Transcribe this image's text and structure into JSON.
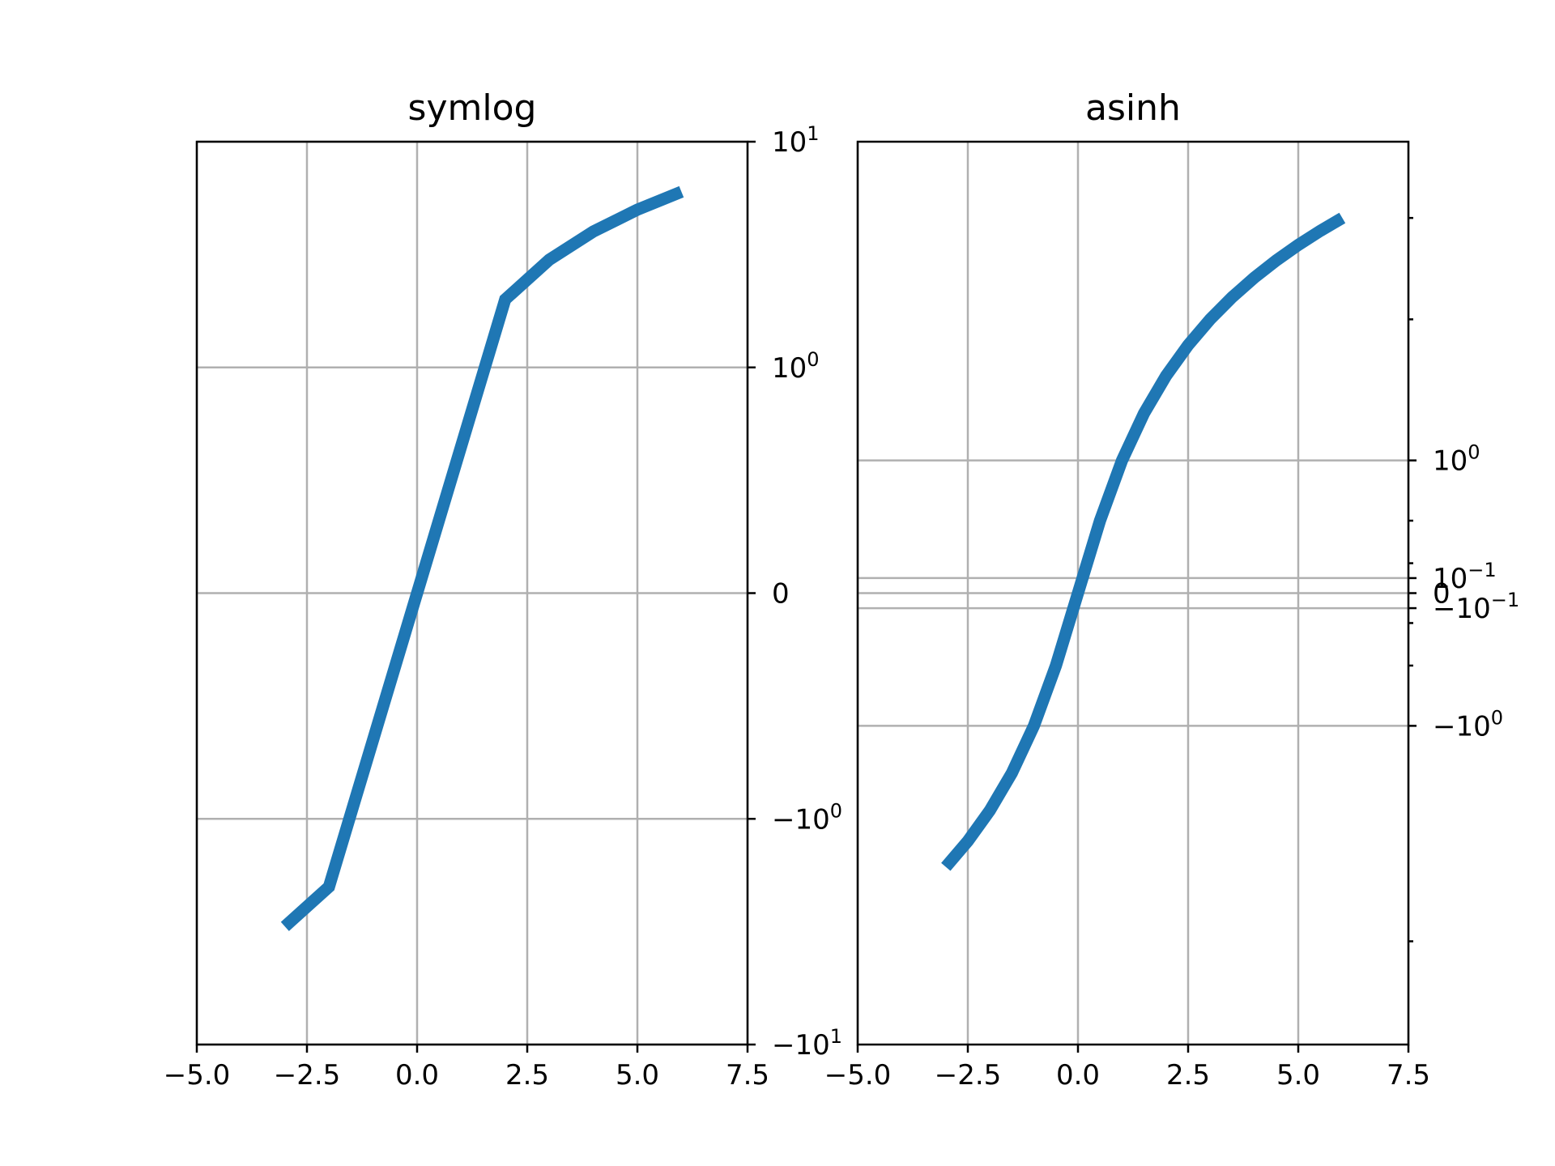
{
  "chart_data": [
    {
      "type": "line",
      "title": "symlog",
      "xlim": [
        -5.0,
        7.5
      ],
      "ylim": [
        -10,
        10
      ],
      "yscale": "symlog",
      "linthresh": 1,
      "grid": true,
      "y_ticks_side": "right",
      "xticks": [
        -5.0,
        -2.5,
        0.0,
        2.5,
        5.0,
        7.5
      ],
      "xtick_labels": [
        "−5.0",
        "−2.5",
        "0.0",
        "2.5",
        "5.0",
        "7.5"
      ],
      "yticks": [
        {
          "value": 10,
          "base": "10",
          "exp": "1"
        },
        {
          "value": 1,
          "base": "10",
          "exp": "0"
        },
        {
          "value": 0,
          "base": "0",
          "exp": ""
        },
        {
          "value": -1,
          "base": "−10",
          "exp": "0"
        },
        {
          "value": -10,
          "base": "−10",
          "exp": "1"
        }
      ],
      "series": [
        {
          "color": "#1f77b4",
          "x": [
            -3.0,
            -2.0,
            2.0,
            3.0,
            4.0,
            5.0,
            6.0
          ],
          "y": [
            -3.0,
            -2.0,
            2.0,
            3.0,
            4.0,
            5.0,
            6.0
          ]
        }
      ]
    },
    {
      "type": "line",
      "title": "asinh",
      "xlim": [
        -5.0,
        7.5
      ],
      "ylim": [
        -10,
        10
      ],
      "yscale": "asinh",
      "grid": true,
      "y_ticks_side": "right",
      "xticks": [
        -5.0,
        -2.5,
        0.0,
        2.5,
        5.0,
        7.5
      ],
      "xtick_labels": [
        "−5.0",
        "−2.5",
        "0.0",
        "2.5",
        "5.0",
        "7.5"
      ],
      "yticks": [
        {
          "value": 1,
          "base": "10",
          "exp": "0"
        },
        {
          "value": 0.1,
          "base": "10",
          "exp": "−1"
        },
        {
          "value": 0,
          "base": "0",
          "exp": ""
        },
        {
          "value": -0.1,
          "base": "−10",
          "exp": "−1"
        },
        {
          "value": -1,
          "base": "−10",
          "exp": "0"
        }
      ],
      "minor_yticks": [
        6,
        3,
        0.5,
        0.2,
        -0.2,
        -0.5,
        -5
      ],
      "series": [
        {
          "color": "#1f77b4",
          "x": [
            -3.0,
            -2.5,
            -2.0,
            -1.5,
            -1.0,
            -0.5,
            0.0,
            0.5,
            1.0,
            1.5,
            2.0,
            2.5,
            3.0,
            3.5,
            4.0,
            4.5,
            5.0,
            5.5,
            6.0
          ],
          "y": [
            -3.0,
            -2.5,
            -2.0,
            -1.5,
            -1.0,
            -0.5,
            0.0,
            0.5,
            1.0,
            1.5,
            2.0,
            2.5,
            3.0,
            3.5,
            4.0,
            4.5,
            5.0,
            5.5,
            6.0
          ]
        }
      ]
    }
  ]
}
